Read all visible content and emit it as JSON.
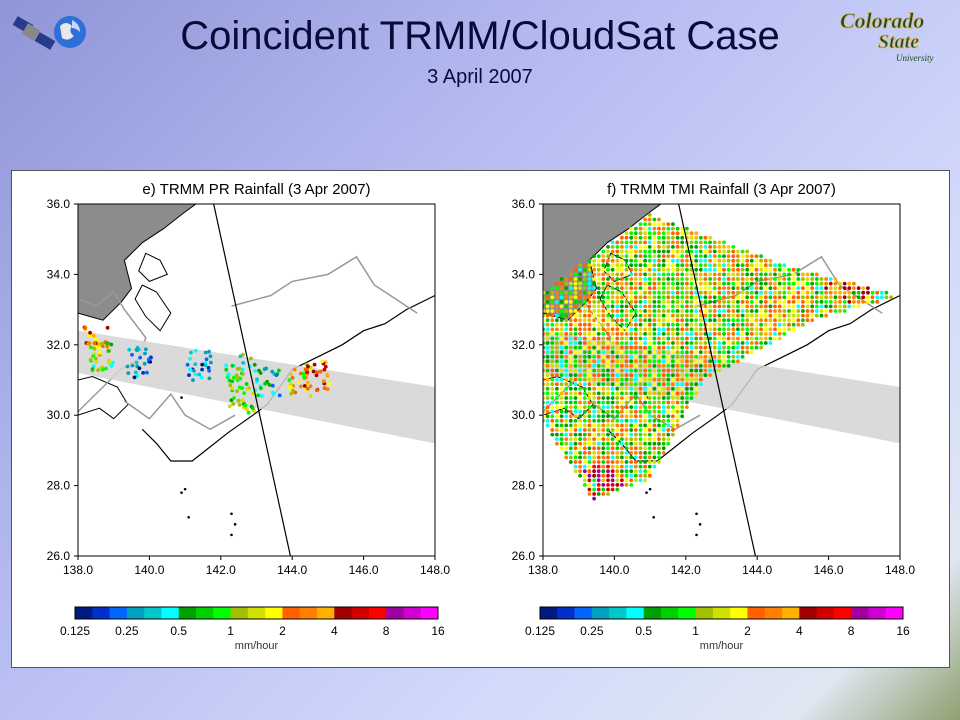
{
  "slide": {
    "title": "Coincident TRMM/CloudSat Case",
    "subtitle": "3 April 2007",
    "logo_text": [
      "Colorado",
      "State",
      "University"
    ]
  },
  "colorbar": {
    "colors": [
      "#001a80",
      "#0030c8",
      "#0066ff",
      "#00a0c0",
      "#00c8c8",
      "#00ffff",
      "#00a000",
      "#00d000",
      "#00ff00",
      "#a0c000",
      "#d0e000",
      "#ffff00",
      "#ff6000",
      "#ff8000",
      "#ffb000",
      "#a00000",
      "#d00000",
      "#ff0000",
      "#a000a0",
      "#d000d0",
      "#ff00ff"
    ],
    "tick_labels": [
      "0.125",
      "0.25",
      "0.5",
      "1",
      "2",
      "4",
      "8",
      "16"
    ],
    "unit": "mm/hour"
  },
  "chart_data": [
    {
      "type": "scatter",
      "title": "e) TRMM PR Rainfall (3 Apr 2007)",
      "x_ticks": [
        "138.0",
        "140.0",
        "142.0",
        "144.0",
        "146.0",
        "148.0"
      ],
      "y_ticks": [
        "36.0",
        "34.0",
        "32.0",
        "30.0",
        "28.0",
        "26.0"
      ],
      "xlim": [
        138,
        148
      ],
      "ylim": [
        26,
        36
      ],
      "swath_band": [
        [
          138,
          32.4
        ],
        [
          138,
          31.2
        ],
        [
          148,
          29.2
        ],
        [
          148,
          30.8
        ]
      ],
      "track_line": [
        [
          141.8,
          36
        ],
        [
          143.95,
          26
        ]
      ],
      "rain_clusters": [
        {
          "lon": 138.5,
          "lat": 32.1,
          "rain_mm_hr": 3
        },
        {
          "lon": 138.7,
          "lat": 31.7,
          "rain_mm_hr": 1
        },
        {
          "lon": 139.7,
          "lat": 31.5,
          "rain_mm_hr": 0.25
        },
        {
          "lon": 141.4,
          "lat": 31.4,
          "rain_mm_hr": 0.3
        },
        {
          "lon": 142.5,
          "lat": 31.3,
          "rain_mm_hr": 0.8
        },
        {
          "lon": 143.3,
          "lat": 31.0,
          "rain_mm_hr": 0.5
        },
        {
          "lon": 144.2,
          "lat": 31.0,
          "rain_mm_hr": 2
        },
        {
          "lon": 144.7,
          "lat": 31.1,
          "rain_mm_hr": 4
        },
        {
          "lon": 142.6,
          "lat": 30.5,
          "rain_mm_hr": 1
        }
      ]
    },
    {
      "type": "scatter",
      "title": "f) TRMM TMI Rainfall (3 Apr 2007)",
      "x_ticks": [
        "138.0",
        "140.0",
        "142.0",
        "144.0",
        "146.0",
        "148.0"
      ],
      "y_ticks": [
        "36.0",
        "34.0",
        "32.0",
        "30.0",
        "28.0",
        "26.0"
      ],
      "xlim": [
        138,
        148
      ],
      "ylim": [
        26,
        36
      ],
      "swath_band": [
        [
          138,
          32.4
        ],
        [
          138,
          31.2
        ],
        [
          148,
          29.2
        ],
        [
          148,
          30.8
        ]
      ],
      "track_line": [
        [
          141.8,
          36
        ],
        [
          143.95,
          26
        ]
      ],
      "tmi_swath": [
        [
          141.0,
          35.7
        ],
        [
          145.0,
          34.2
        ],
        [
          148,
          33.4
        ],
        [
          145.6,
          32.7
        ],
        [
          142.5,
          31.0
        ],
        [
          141.0,
          28.2
        ],
        [
          139.4,
          27.6
        ],
        [
          138,
          29.8
        ],
        [
          138,
          33.5
        ]
      ],
      "rain_clusters": [
        {
          "lon": 139.5,
          "lat": 32.5,
          "rain_mm_hr": 2
        },
        {
          "lon": 141.8,
          "lat": 33.5,
          "rain_mm_hr": 1
        },
        {
          "lon": 144.8,
          "lat": 33.0,
          "rain_mm_hr": 2
        },
        {
          "lon": 146.5,
          "lat": 33.8,
          "rain_mm_hr": 4
        },
        {
          "lon": 139.6,
          "lat": 27.9,
          "rain_mm_hr": 8
        }
      ]
    }
  ]
}
